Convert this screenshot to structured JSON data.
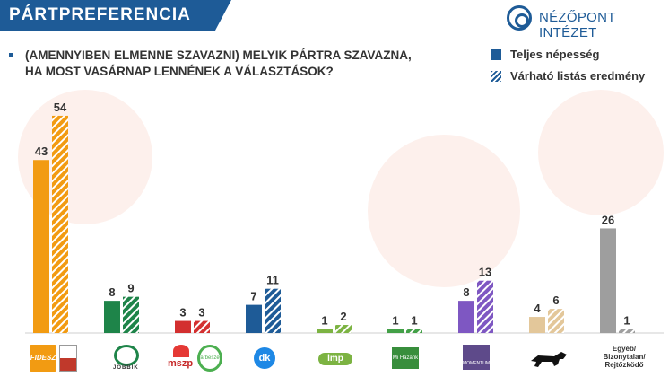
{
  "banner_title": "PÁRTPREFERENCIA",
  "logo_text": "NÉZŐPONT INTÉZET",
  "question": {
    "line1": "(AMENNYIBEN ELMENNE SZAVAZNI) MELYIK PÁRTRA SZAVAZNA,",
    "line2": "HA MOST VASÁRNAP LENNÉNEK A VÁLASZTÁSOK?"
  },
  "legend": {
    "solid": "Teljes népesség",
    "hatched": "Várható listás eredmény"
  },
  "party_logos": {
    "fidesz": "FIDESZ",
    "jobbik": "JOBBIK",
    "mszp": "mszp",
    "parbeszed": "párbeszéd",
    "dk": "dk",
    "lmp": "lmp",
    "mihazank": "Mi Hazánk",
    "momentum": "MOMENTUM"
  },
  "chart_data": {
    "type": "bar",
    "categories": [
      "Fidesz-KDNP",
      "Jobbik",
      "MSZP-Párbeszéd",
      "DK",
      "LMP",
      "Mi Hazánk",
      "Momentum",
      "MKKP",
      "Egyéb/ Bizonytalan/ Rejtőzködő"
    ],
    "category_labels_printed": [
      "",
      "",
      "",
      "",
      "",
      "",
      "",
      "",
      "Egyéb/ Bizonytalan/ Rejtőzködő"
    ],
    "series": [
      {
        "name": "Teljes népesség",
        "values": [
          43,
          8,
          3,
          7,
          1,
          1,
          8,
          4,
          26
        ]
      },
      {
        "name": "Várható listás eredmény",
        "values": [
          54,
          9,
          3,
          11,
          2,
          1,
          13,
          6,
          1
        ]
      }
    ],
    "colors": [
      "#f29b12",
      "#1e8449",
      "#d32f2f",
      "#1e5b97",
      "#7cb342",
      "#43a047",
      "#7e57c2",
      "#e3c79a",
      "#9e9e9e"
    ],
    "ylim": [
      0,
      58
    ],
    "title": "",
    "xlabel": "",
    "ylabel": ""
  }
}
